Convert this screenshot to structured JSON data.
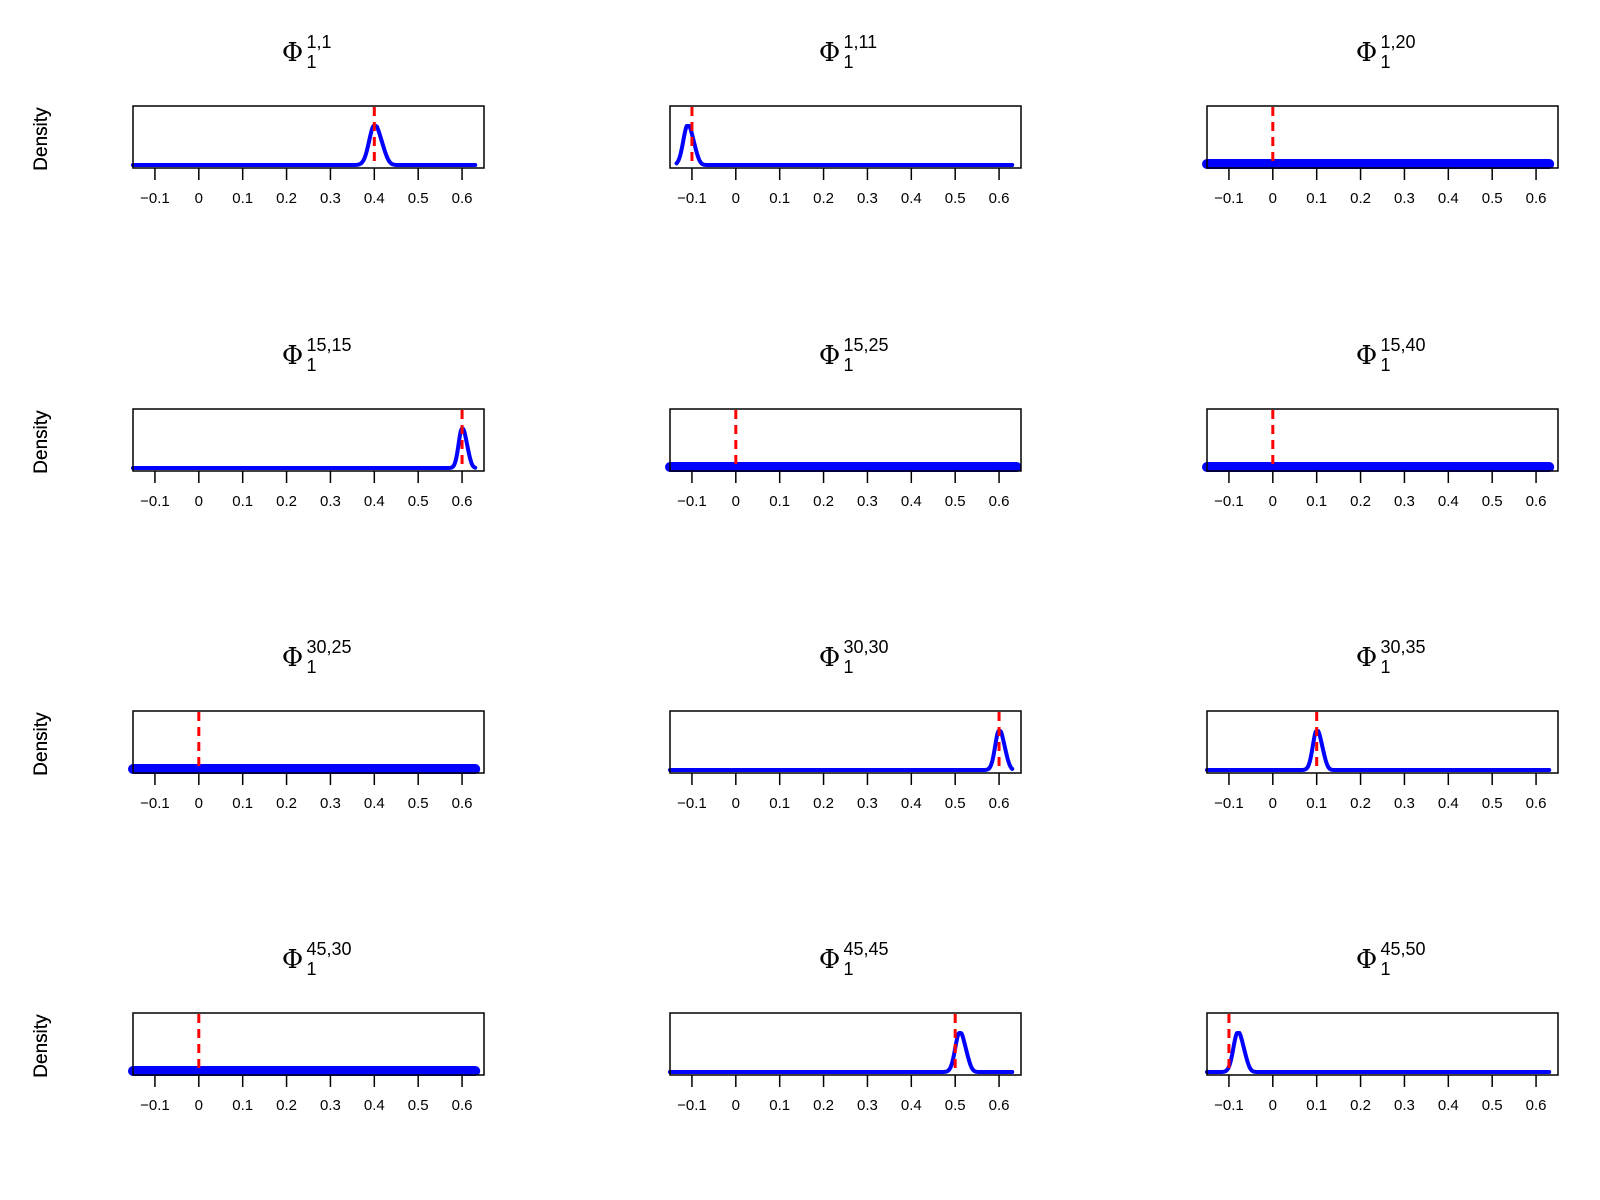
{
  "figure": {
    "ylabel": "Density",
    "true_color": "#ff0000",
    "density_color": "#0000ff",
    "frame_color": "#000000"
  },
  "chart_data": [
    {
      "type": "line",
      "title": {
        "symbol": "Φ",
        "sub": "1",
        "sup": "1,1"
      },
      "ylabel": "Density",
      "xlim": [
        -0.15,
        0.65
      ],
      "xticks": [
        "-0.1",
        "0",
        "0.1",
        "0.2",
        "0.3",
        "0.4",
        "0.5",
        "0.6"
      ],
      "true_value": 0.4,
      "density": {
        "mode": "peak",
        "center": 0.4,
        "sd": 0.012,
        "range": [
          -0.15,
          0.63
        ]
      }
    },
    {
      "type": "line",
      "title": {
        "symbol": "Φ",
        "sub": "1",
        "sup": "1,11"
      },
      "ylabel": "Density",
      "xlim": [
        -0.15,
        0.65
      ],
      "xticks": [
        "-0.1",
        "0",
        "0.1",
        "0.2",
        "0.3",
        "0.4",
        "0.5",
        "0.6"
      ],
      "true_value": -0.1,
      "density": {
        "mode": "peak",
        "center": -0.11,
        "sd": 0.01,
        "range": [
          -0.135,
          0.63
        ]
      }
    },
    {
      "type": "line",
      "title": {
        "symbol": "Φ",
        "sub": "1",
        "sup": "1,20"
      },
      "ylabel": "Density",
      "xlim": [
        -0.15,
        0.65
      ],
      "xticks": [
        "-0.1",
        "0",
        "0.1",
        "0.2",
        "0.3",
        "0.4",
        "0.5",
        "0.6"
      ],
      "true_value": 0.0,
      "density": {
        "mode": "flat",
        "range": [
          -0.15,
          0.63
        ]
      }
    },
    {
      "type": "line",
      "title": {
        "symbol": "Φ",
        "sub": "1",
        "sup": "15,15"
      },
      "ylabel": "Density",
      "xlim": [
        -0.15,
        0.65
      ],
      "xticks": [
        "-0.1",
        "0",
        "0.1",
        "0.2",
        "0.3",
        "0.4",
        "0.5",
        "0.6"
      ],
      "true_value": 0.6,
      "density": {
        "mode": "peak",
        "center": 0.6,
        "sd": 0.008,
        "range": [
          -0.15,
          0.63
        ]
      }
    },
    {
      "type": "line",
      "title": {
        "symbol": "Φ",
        "sub": "1",
        "sup": "15,25"
      },
      "ylabel": "Density",
      "xlim": [
        -0.15,
        0.65
      ],
      "xticks": [
        "-0.1",
        "0",
        "0.1",
        "0.2",
        "0.3",
        "0.4",
        "0.5",
        "0.6"
      ],
      "true_value": 0.0,
      "density": {
        "mode": "flat",
        "range": [
          -0.15,
          0.64
        ]
      }
    },
    {
      "type": "line",
      "title": {
        "symbol": "Φ",
        "sub": "1",
        "sup": "15,40"
      },
      "ylabel": "Density",
      "xlim": [
        -0.15,
        0.65
      ],
      "xticks": [
        "-0.1",
        "0",
        "0.1",
        "0.2",
        "0.3",
        "0.4",
        "0.5",
        "0.6"
      ],
      "true_value": 0.0,
      "density": {
        "mode": "flat",
        "range": [
          -0.15,
          0.63
        ]
      }
    },
    {
      "type": "line",
      "title": {
        "symbol": "Φ",
        "sub": "1",
        "sup": "30,25"
      },
      "ylabel": "Density",
      "xlim": [
        -0.15,
        0.65
      ],
      "xticks": [
        "-0.1",
        "0",
        "0.1",
        "0.2",
        "0.3",
        "0.4",
        "0.5",
        "0.6"
      ],
      "true_value": 0.0,
      "density": {
        "mode": "flat",
        "range": [
          -0.15,
          0.63
        ]
      }
    },
    {
      "type": "line",
      "title": {
        "symbol": "Φ",
        "sub": "1",
        "sup": "30,30"
      },
      "ylabel": "Density",
      "xlim": [
        -0.15,
        0.65
      ],
      "xticks": [
        "-0.1",
        "0",
        "0.1",
        "0.2",
        "0.3",
        "0.4",
        "0.5",
        "0.6"
      ],
      "true_value": 0.6,
      "density": {
        "mode": "peak",
        "center": 0.6,
        "sd": 0.009,
        "range": [
          -0.15,
          0.63
        ]
      }
    },
    {
      "type": "line",
      "title": {
        "symbol": "Φ",
        "sub": "1",
        "sup": "30,35"
      },
      "ylabel": "Density",
      "xlim": [
        -0.15,
        0.65
      ],
      "xticks": [
        "-0.1",
        "0",
        "0.1",
        "0.2",
        "0.3",
        "0.4",
        "0.5",
        "0.6"
      ],
      "true_value": 0.1,
      "density": {
        "mode": "peak",
        "center": 0.1,
        "sd": 0.009,
        "range": [
          -0.15,
          0.63
        ]
      }
    },
    {
      "type": "line",
      "title": {
        "symbol": "Φ",
        "sub": "1",
        "sup": "45,30"
      },
      "ylabel": "Density",
      "xlim": [
        -0.15,
        0.65
      ],
      "xticks": [
        "-0.1",
        "0",
        "0.1",
        "0.2",
        "0.3",
        "0.4",
        "0.5",
        "0.6"
      ],
      "true_value": 0.0,
      "density": {
        "mode": "flat",
        "range": [
          -0.15,
          0.63
        ]
      }
    },
    {
      "type": "line",
      "title": {
        "symbol": "Φ",
        "sub": "1",
        "sup": "45,45"
      },
      "ylabel": "Density",
      "xlim": [
        -0.15,
        0.65
      ],
      "xticks": [
        "-0.1",
        "0",
        "0.1",
        "0.2",
        "0.3",
        "0.4",
        "0.5",
        "0.6"
      ],
      "true_value": 0.5,
      "density": {
        "mode": "peak",
        "center": 0.51,
        "sd": 0.01,
        "range": [
          -0.15,
          0.63
        ]
      }
    },
    {
      "type": "line",
      "title": {
        "symbol": "Φ",
        "sub": "1",
        "sup": "45,50"
      },
      "ylabel": "Density",
      "xlim": [
        -0.15,
        0.65
      ],
      "xticks": [
        "-0.1",
        "0",
        "0.1",
        "0.2",
        "0.3",
        "0.4",
        "0.5",
        "0.6"
      ],
      "true_value": -0.1,
      "density": {
        "mode": "peak",
        "center": -0.08,
        "sd": 0.01,
        "range": [
          -0.15,
          0.63
        ]
      }
    }
  ]
}
